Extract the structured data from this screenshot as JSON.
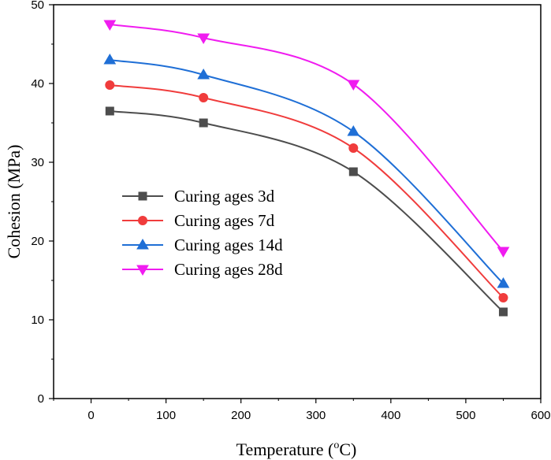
{
  "chart_data": {
    "type": "line",
    "xlabel": "Temperature (",
    "xlabel_sup": "o",
    "xlabel_suffix": "C)",
    "ylabel": "Cohesion (MPa)",
    "xlim": [
      -50,
      600
    ],
    "ylim": [
      0,
      50
    ],
    "xticks": [
      0,
      100,
      200,
      300,
      400,
      500,
      600
    ],
    "yticks": [
      0,
      10,
      20,
      30,
      40,
      50
    ],
    "x": [
      25,
      150,
      350,
      550
    ],
    "legend_position": "center-left",
    "series": [
      {
        "name": "Curing ages 3d",
        "marker": "square",
        "color": "#4d4d4d",
        "values": [
          36.5,
          35.0,
          28.8,
          11.0
        ]
      },
      {
        "name": "Curing ages 7d",
        "marker": "circle",
        "color": "#f03c3c",
        "values": [
          39.8,
          38.2,
          31.8,
          12.8
        ]
      },
      {
        "name": "Curing ages 14d",
        "marker": "triangle-up",
        "color": "#1f6fd6",
        "values": [
          43.0,
          41.1,
          33.9,
          14.6
        ]
      },
      {
        "name": "Curing ages 28d",
        "marker": "triangle-down",
        "color": "#f01cf0",
        "values": [
          47.5,
          45.8,
          39.9,
          18.7
        ]
      }
    ]
  }
}
